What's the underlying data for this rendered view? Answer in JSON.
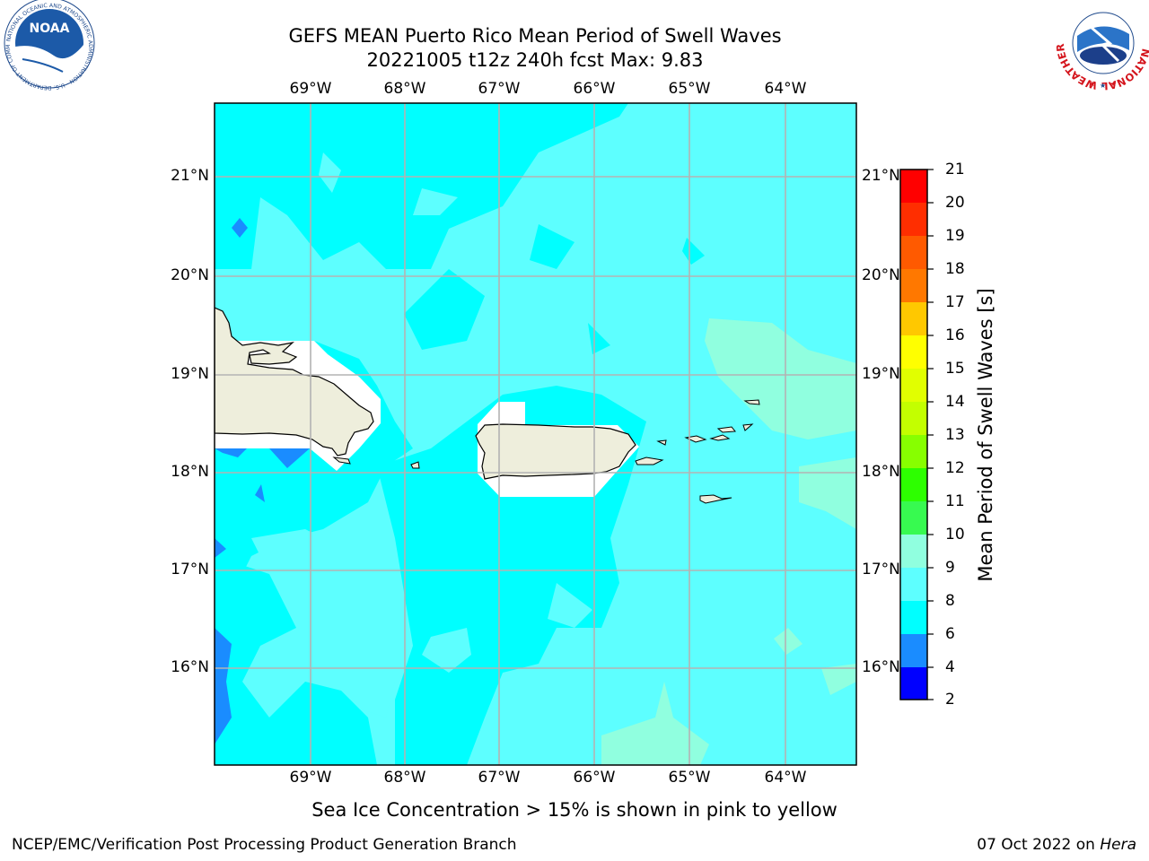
{
  "title": {
    "line1": "GEFS MEAN Puerto Rico Mean Period of Swell Waves",
    "line2": "20221005 t12z 240h fcst   Max: 9.83"
  },
  "map": {
    "lon_labels": [
      "69°W",
      "68°W",
      "67°W",
      "66°W",
      "65°W",
      "64°W"
    ],
    "lat_labels": [
      "21°N",
      "20°N",
      "19°N",
      "18°N",
      "17°N",
      "16°N"
    ],
    "land_color": "#eeeedc",
    "colors": {
      "band_6_8": "#00ffff",
      "band_8_9": "#5dffff",
      "band_9_10": "#90ffdf",
      "band_4_6": "#1a8cff"
    }
  },
  "colorbar": {
    "label": "Mean Period of Swell Waves [s]",
    "ticks": [
      "21",
      "20",
      "19",
      "18",
      "17",
      "16",
      "15",
      "14",
      "13",
      "12",
      "11",
      "10",
      "9",
      "8",
      "6",
      "4",
      "2"
    ],
    "colors_top_to_bottom": [
      "#ff0000",
      "#ff2e00",
      "#ff5a00",
      "#ff7800",
      "#ff9600",
      "#ffc800",
      "#ffff00",
      "#e1ff00",
      "#c3ff00",
      "#87ff00",
      "#2dff00",
      "#37fa50",
      "#90ffdf",
      "#5dffff",
      "#00ffff",
      "#1a8cff",
      "#0000ff"
    ]
  },
  "note": "Sea Ice Concentration > 15% is shown in pink to yellow",
  "footer": {
    "left": "NCEP/EMC/Verification Post Processing Product Generation Branch",
    "right_date": "07 Oct 2022 on ",
    "right_host": "Hera"
  },
  "logos": {
    "noaa_text": "NOAA",
    "noaa_ring": "NATIONAL OCEANIC AND ATMOSPHERIC ADMINISTRATION · U.S. DEPARTMENT OF COMMERCE",
    "nws_ring": "NATIONAL WEATHER SERVICE"
  }
}
